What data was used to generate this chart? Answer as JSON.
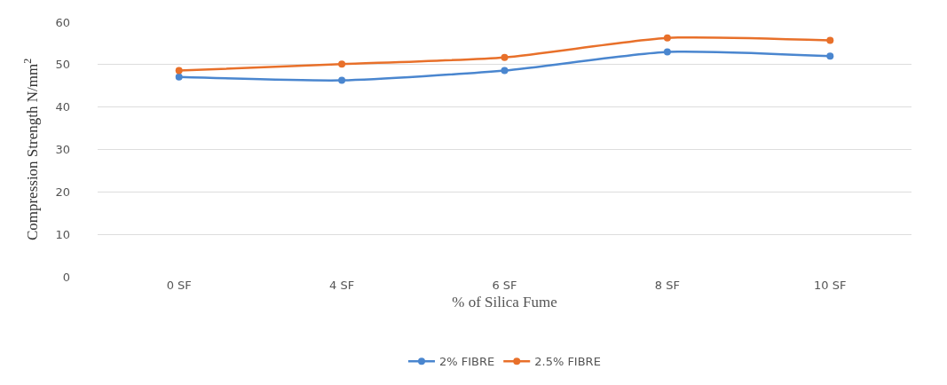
{
  "chart_data": {
    "type": "line",
    "xlabel": "% of Silica Fume",
    "ylabel": "Compression Strength N/mm$^{2}$",
    "categories": [
      "0 SF",
      "4 SF",
      "6 SF",
      "8 SF",
      "10 SF"
    ],
    "series": [
      {
        "name": "2% FIBRE",
        "color": "#4a86cf",
        "values": [
          47.1,
          46.3,
          48.6,
          53.0,
          52.0
        ]
      },
      {
        "name": "2.5% FIBRE",
        "color": "#e8702a",
        "values": [
          48.6,
          50.1,
          51.7,
          56.3,
          55.7
        ]
      }
    ],
    "ylim": [
      0,
      60
    ],
    "yticks": [
      0,
      10,
      20,
      30,
      40,
      50,
      60
    ],
    "grid": "y",
    "legend": "bottom",
    "marker": "circle",
    "line_style": "solid"
  }
}
